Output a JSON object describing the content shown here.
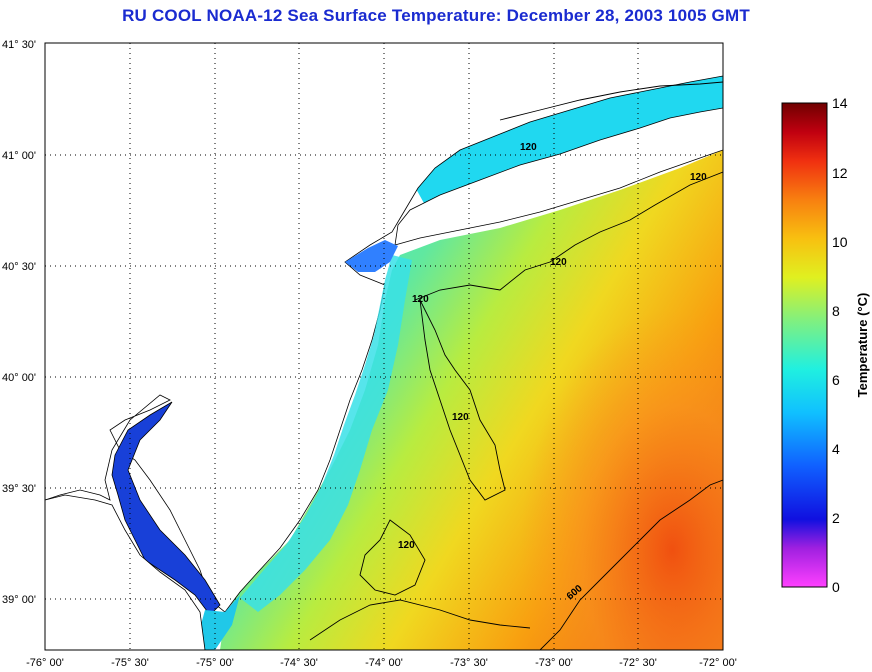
{
  "title": "RU COOL  NOAA-12  Sea Surface Temperature:  December 28, 2003 1005 GMT",
  "lat_labels": [
    "41° 30'",
    "41° 00'",
    "40° 30'",
    "40° 00'",
    "39° 30'",
    "39° 00'"
  ],
  "lon_labels": [
    "-76° 00'",
    "-75° 30'",
    "-75° 00'",
    "-74° 30'",
    "-74° 00'",
    "-73° 30'",
    "-73° 00'",
    "-72° 30'",
    "-72° 00'"
  ],
  "contour_labels": [
    "120",
    "120",
    "120",
    "120",
    "120",
    "120",
    "600"
  ],
  "colorbar": {
    "title": "Temperature (°C)",
    "ticks": [
      "0",
      "2",
      "4",
      "6",
      "8",
      "10",
      "12",
      "14"
    ],
    "range": [
      0,
      14
    ]
  },
  "colors": {
    "title": "#1a2bd0",
    "land": "#ffffff",
    "cold": "#1830e0",
    "cool": "#20e0f0",
    "mild": "#80e050",
    "warm": "#f0e020",
    "hot": "#f06010"
  }
}
